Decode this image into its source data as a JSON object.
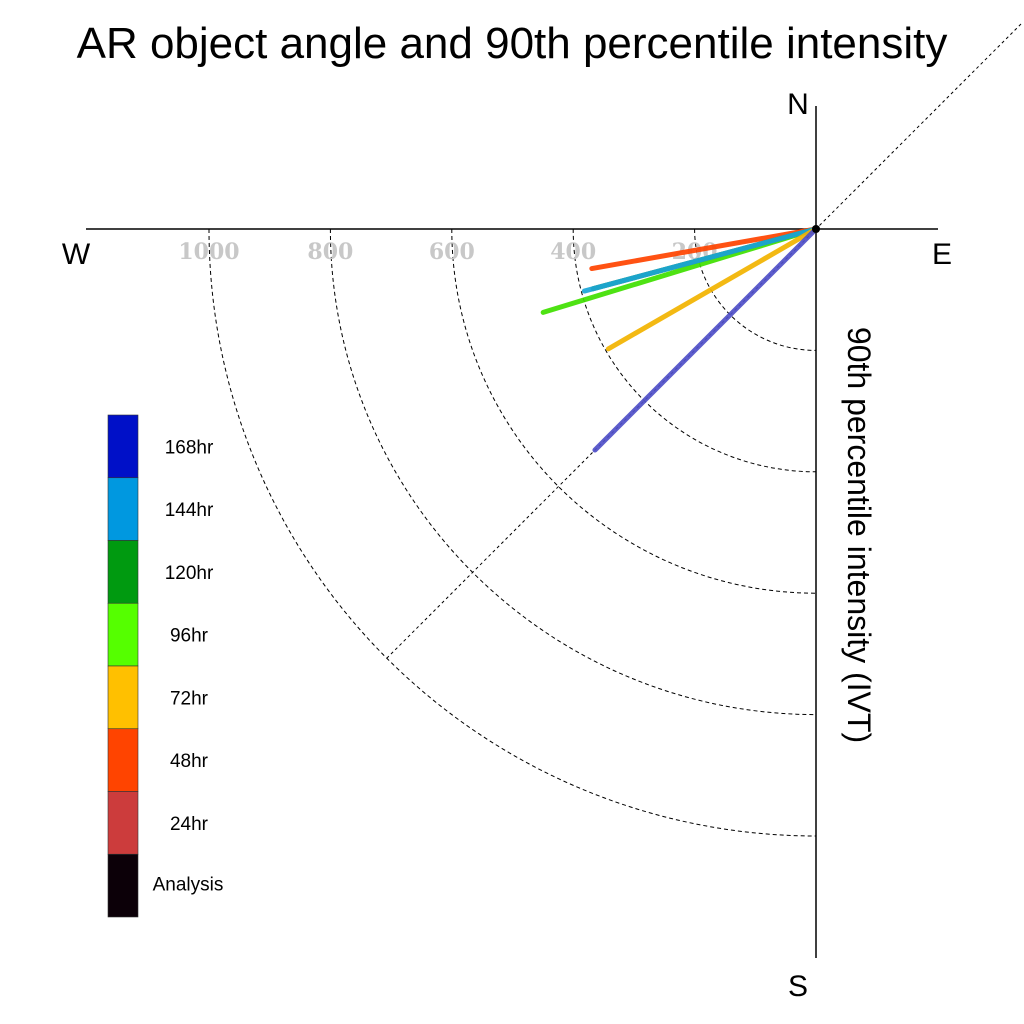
{
  "chart_data": {
    "type": "polar-line",
    "title": "AR object angle and 90th percentile intensity",
    "ylabel": "90th percentile intensity (IVT)",
    "directions": {
      "north": "N",
      "south": "S",
      "east": "E",
      "west": "W"
    },
    "radial_ticks": [
      {
        "value": 200,
        "label": "200"
      },
      {
        "value": 400,
        "label": "400"
      },
      {
        "value": 600,
        "label": "600"
      },
      {
        "value": 800,
        "label": "800"
      },
      {
        "value": 1000,
        "label": "1000"
      }
    ],
    "radial_range": [
      0,
      1000
    ],
    "series": [
      {
        "name": "168hr",
        "color": "#0010c8",
        "line_color": "#5050c8",
        "angle_deg": 225,
        "intensity": 515
      },
      {
        "name": "144hr",
        "color": "#0098e0",
        "line_color": "#1aa6d8",
        "angle_deg": 255,
        "intensity": 395
      },
      {
        "name": "120hr",
        "color": "#009a10",
        "line_color": "#2e8a2e",
        "angle_deg": 255,
        "intensity": 380
      },
      {
        "name": "96hr",
        "color": "#55ff00",
        "line_color": "#40e000",
        "angle_deg": 253,
        "intensity": 470
      },
      {
        "name": "72hr",
        "color": "#ffc000",
        "line_color": "#f2b400",
        "angle_deg": 240,
        "intensity": 395
      },
      {
        "name": "48hr",
        "color": "#ff4400",
        "line_color": "#ff4400",
        "angle_deg": 260,
        "intensity": 375
      },
      {
        "name": "24hr",
        "color": "#cc3c3c",
        "line_color": "#b83232",
        "angle_deg": 250,
        "intensity": 0
      },
      {
        "name": "Analysis",
        "color": "#0c0008",
        "line_color": "#000000",
        "angle_deg": 245,
        "intensity": 0
      }
    ],
    "draw_order": [
      "24hr",
      "48hr",
      "Analysis",
      "96hr",
      "120hr",
      "144hr",
      "72hr",
      "168hr"
    ]
  }
}
